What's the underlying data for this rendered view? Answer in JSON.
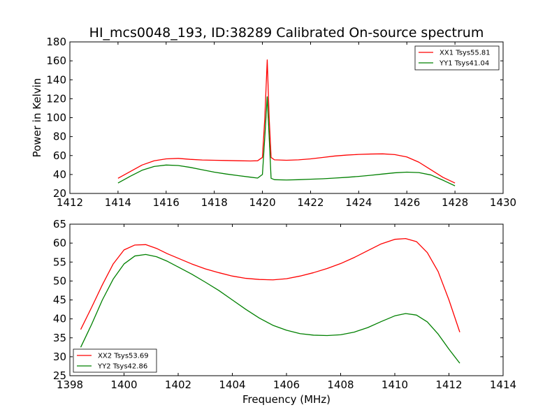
{
  "figure": {
    "title": "HI_mcs0048_193, ID:38289 Calibrated On-source spectrum",
    "xlabel": "Frequency (MHz)"
  },
  "chart_data": [
    {
      "type": "line",
      "title": "HI_mcs0048_193, ID:38289 Calibrated On-source spectrum",
      "xlabel": "",
      "ylabel": "Power in Kelvin",
      "xlim": [
        1412,
        1430
      ],
      "ylim": [
        20,
        180
      ],
      "xticks": [
        1412,
        1414,
        1416,
        1418,
        1420,
        1422,
        1424,
        1426,
        1428,
        1430
      ],
      "yticks": [
        20,
        40,
        60,
        80,
        100,
        120,
        140,
        160,
        180
      ],
      "grid": false,
      "legend": "top-right",
      "series": [
        {
          "name": "XX1 Tsys55.81",
          "color": "#ff0000",
          "x": [
            1414.0,
            1414.5,
            1415.0,
            1415.5,
            1416.0,
            1416.5,
            1417.0,
            1417.5,
            1418.0,
            1418.5,
            1419.0,
            1419.5,
            1419.8,
            1420.0,
            1420.1,
            1420.2,
            1420.28,
            1420.36,
            1420.5,
            1421.0,
            1421.5,
            1422.0,
            1422.5,
            1423.0,
            1423.5,
            1424.0,
            1424.5,
            1425.0,
            1425.5,
            1426.0,
            1426.5,
            1427.0,
            1427.5,
            1428.0
          ],
          "y": [
            36,
            43,
            50,
            54.5,
            56.5,
            57,
            56,
            55.3,
            55,
            54.8,
            54.5,
            54.3,
            54.5,
            58,
            100,
            161,
            100,
            58,
            55.5,
            55,
            55.5,
            56.5,
            58,
            59.5,
            60.5,
            61.2,
            61.6,
            61.8,
            61,
            58.5,
            53,
            45,
            37,
            31
          ]
        },
        {
          "name": "YY1 Tsys41.04",
          "color": "#008000",
          "x": [
            1414.0,
            1414.5,
            1415.0,
            1415.5,
            1416.0,
            1416.5,
            1417.0,
            1417.5,
            1418.0,
            1418.5,
            1419.0,
            1419.5,
            1419.8,
            1420.0,
            1420.1,
            1420.2,
            1420.28,
            1420.36,
            1420.5,
            1421.0,
            1421.5,
            1422.0,
            1422.5,
            1423.0,
            1423.5,
            1424.0,
            1424.5,
            1425.0,
            1425.5,
            1426.0,
            1426.5,
            1427.0,
            1427.5,
            1428.0
          ],
          "y": [
            31,
            38,
            44.5,
            48.5,
            50,
            49.5,
            47.5,
            45,
            42.5,
            40.5,
            38.8,
            37.2,
            36.2,
            40,
            80,
            122,
            80,
            36,
            34.5,
            34.2,
            34.5,
            35,
            35.5,
            36.2,
            37,
            38,
            39.2,
            40.5,
            41.8,
            42.5,
            42,
            39.5,
            34,
            28
          ]
        }
      ]
    },
    {
      "type": "line",
      "title": "",
      "xlabel": "Frequency (MHz)",
      "ylabel": "",
      "xlim": [
        1398,
        1414
      ],
      "ylim": [
        25,
        65
      ],
      "xticks": [
        1398,
        1400,
        1402,
        1404,
        1406,
        1408,
        1410,
        1412,
        1414
      ],
      "yticks": [
        25,
        30,
        35,
        40,
        45,
        50,
        55,
        60,
        65
      ],
      "grid": false,
      "legend": "bottom-left",
      "series": [
        {
          "name": "XX2 Tsys53.69",
          "color": "#ff0000",
          "x": [
            1398.4,
            1398.8,
            1399.2,
            1399.6,
            1400.0,
            1400.4,
            1400.8,
            1401.2,
            1401.6,
            1402.0,
            1402.5,
            1403.0,
            1403.5,
            1404.0,
            1404.5,
            1405.0,
            1405.5,
            1406.0,
            1406.5,
            1407.0,
            1407.5,
            1408.0,
            1408.5,
            1409.0,
            1409.5,
            1410.0,
            1410.4,
            1410.8,
            1411.2,
            1411.6,
            1412.0,
            1412.4
          ],
          "y": [
            37.2,
            43,
            49,
            54.5,
            58.2,
            59.5,
            59.6,
            58.6,
            57.2,
            56,
            54.5,
            53.2,
            52.2,
            51.3,
            50.7,
            50.4,
            50.3,
            50.6,
            51.3,
            52.2,
            53.3,
            54.6,
            56.2,
            58,
            59.8,
            61,
            61.2,
            60.4,
            57.5,
            52.5,
            45,
            36.5
          ]
        },
        {
          "name": "YY2 Tsys42.86",
          "color": "#008000",
          "x": [
            1398.4,
            1398.8,
            1399.2,
            1399.6,
            1400.0,
            1400.4,
            1400.8,
            1401.2,
            1401.6,
            1402.0,
            1402.5,
            1403.0,
            1403.5,
            1404.0,
            1404.5,
            1405.0,
            1405.5,
            1406.0,
            1406.5,
            1407.0,
            1407.5,
            1408.0,
            1408.5,
            1409.0,
            1409.5,
            1410.0,
            1410.4,
            1410.8,
            1411.2,
            1411.6,
            1412.0,
            1412.4
          ],
          "y": [
            32.5,
            38.5,
            45,
            50.5,
            54.5,
            56.6,
            57,
            56.4,
            55.2,
            53.7,
            51.8,
            49.7,
            47.5,
            45,
            42.5,
            40.2,
            38.3,
            37,
            36.1,
            35.7,
            35.6,
            35.8,
            36.5,
            37.7,
            39.3,
            40.8,
            41.4,
            41,
            39.2,
            36,
            32,
            28.3
          ]
        }
      ]
    }
  ]
}
